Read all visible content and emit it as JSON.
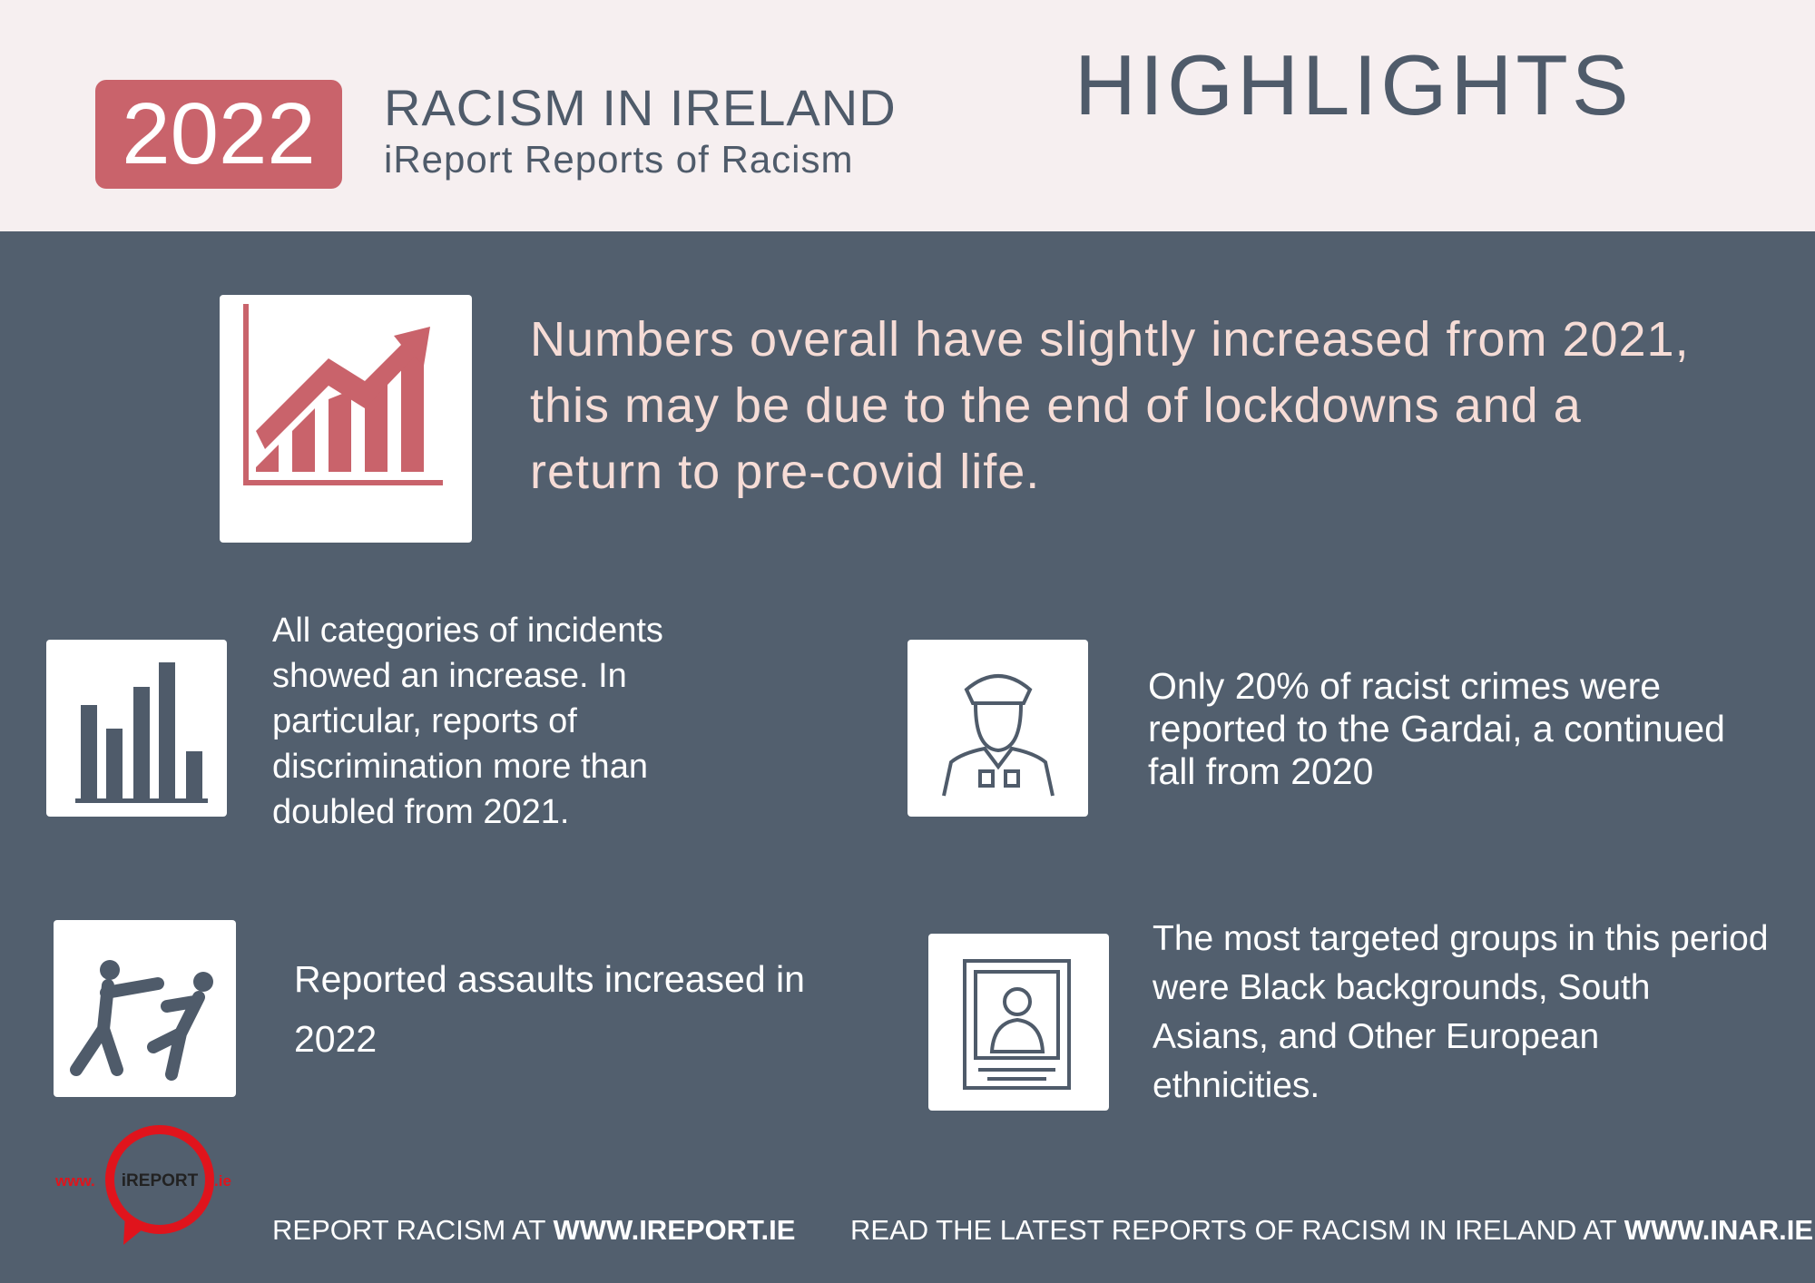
{
  "header": {
    "year": "2022",
    "title": "RACISM IN IRELAND",
    "subtitle": "iReport Reports of Racism",
    "heading": "HIGHLIGHTS"
  },
  "highlights": [
    "Numbers overall have slightly increased from 2021, this may be due to the end of lockdowns and a return to pre-covid life.",
    "All categories of incidents showed an increase. In particular, reports of discrimination more than doubled from 2021.",
    "Only 20% of racist crimes were reported to the Gardai, a continued fall from 2020",
    "Reported assaults increased in 2022",
    "The most targeted groups in this period were Black backgrounds, South Asians, and Other European ethnicities."
  ],
  "logo": {
    "left": "www.",
    "center": "iREPORT",
    "right": ".ie"
  },
  "footer": {
    "left_prefix": "REPORT RACISM AT",
    "left_url": "WWW.IREPORT.IE",
    "right_prefix": "READ THE LATEST REPORTS OF RACISM IN IRELAND AT",
    "right_url": "WWW.INAR.IE"
  }
}
